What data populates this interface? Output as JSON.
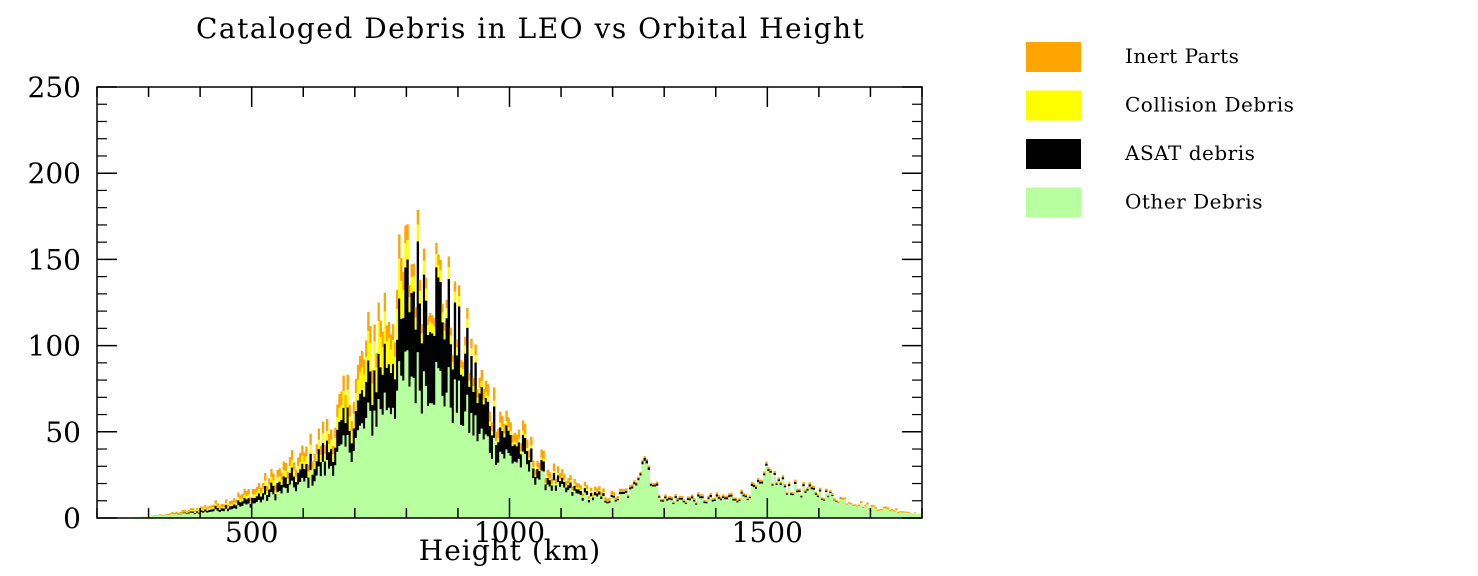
{
  "chart_data": {
    "type": "bar",
    "stacked": true,
    "title": "Cataloged Debris in LEO vs Orbital Height",
    "xlabel": "Height (km)",
    "ylabel": "",
    "xlim": [
      200,
      1800
    ],
    "ylim": [
      0,
      250
    ],
    "xticks": [
      500,
      1000,
      1500
    ],
    "yticks": [
      0,
      50,
      100,
      150,
      200,
      250
    ],
    "grid": false,
    "legend_position": "right",
    "x": [
      200,
      250,
      300,
      350,
      400,
      450,
      500,
      550,
      600,
      650,
      700,
      725,
      750,
      775,
      790,
      800,
      825,
      850,
      875,
      900,
      925,
      950,
      975,
      1000,
      1025,
      1050,
      1075,
      1100,
      1150,
      1200,
      1240,
      1260,
      1280,
      1300,
      1350,
      1400,
      1450,
      1490,
      1500,
      1520,
      1550,
      1600,
      1650,
      1700,
      1750,
      1800
    ],
    "series": [
      {
        "name": "Other Debris",
        "color": "#b8ff9f",
        "values": [
          0,
          0,
          1,
          2,
          3,
          5,
          8,
          14,
          20,
          30,
          45,
          55,
          65,
          70,
          75,
          85,
          80,
          82,
          75,
          65,
          55,
          45,
          40,
          35,
          32,
          25,
          20,
          16,
          12,
          10,
          15,
          38,
          18,
          10,
          10,
          10,
          12,
          18,
          26,
          20,
          16,
          14,
          10,
          6,
          4,
          2
        ]
      },
      {
        "name": "ASAT debris",
        "color": "#000000",
        "values": [
          0,
          0,
          0,
          0,
          1,
          2,
          3,
          5,
          7,
          10,
          15,
          20,
          25,
          28,
          30,
          45,
          55,
          50,
          45,
          35,
          30,
          20,
          15,
          12,
          8,
          6,
          4,
          3,
          2,
          1,
          1,
          2,
          1,
          1,
          1,
          1,
          1,
          1,
          1,
          1,
          1,
          1,
          0,
          0,
          0,
          0
        ]
      },
      {
        "name": "Collision Debris",
        "color": "#ffff00",
        "values": [
          0,
          0,
          0,
          0,
          1,
          1,
          2,
          3,
          4,
          5,
          10,
          14,
          18,
          15,
          20,
          10,
          8,
          7,
          6,
          5,
          4,
          3,
          3,
          2,
          2,
          1,
          1,
          1,
          1,
          0,
          0,
          0,
          0,
          0,
          0,
          0,
          0,
          0,
          0,
          0,
          0,
          0,
          0,
          0,
          0,
          0
        ]
      },
      {
        "name": "Inert Parts",
        "color": "#ffa500",
        "values": [
          0,
          0,
          0,
          1,
          1,
          2,
          3,
          4,
          5,
          6,
          8,
          9,
          10,
          10,
          12,
          8,
          7,
          6,
          5,
          5,
          5,
          6,
          7,
          5,
          5,
          4,
          4,
          3,
          2,
          2,
          1,
          1,
          1,
          1,
          1,
          1,
          1,
          1,
          1,
          1,
          1,
          1,
          1,
          1,
          1,
          0
        ]
      }
    ]
  }
}
